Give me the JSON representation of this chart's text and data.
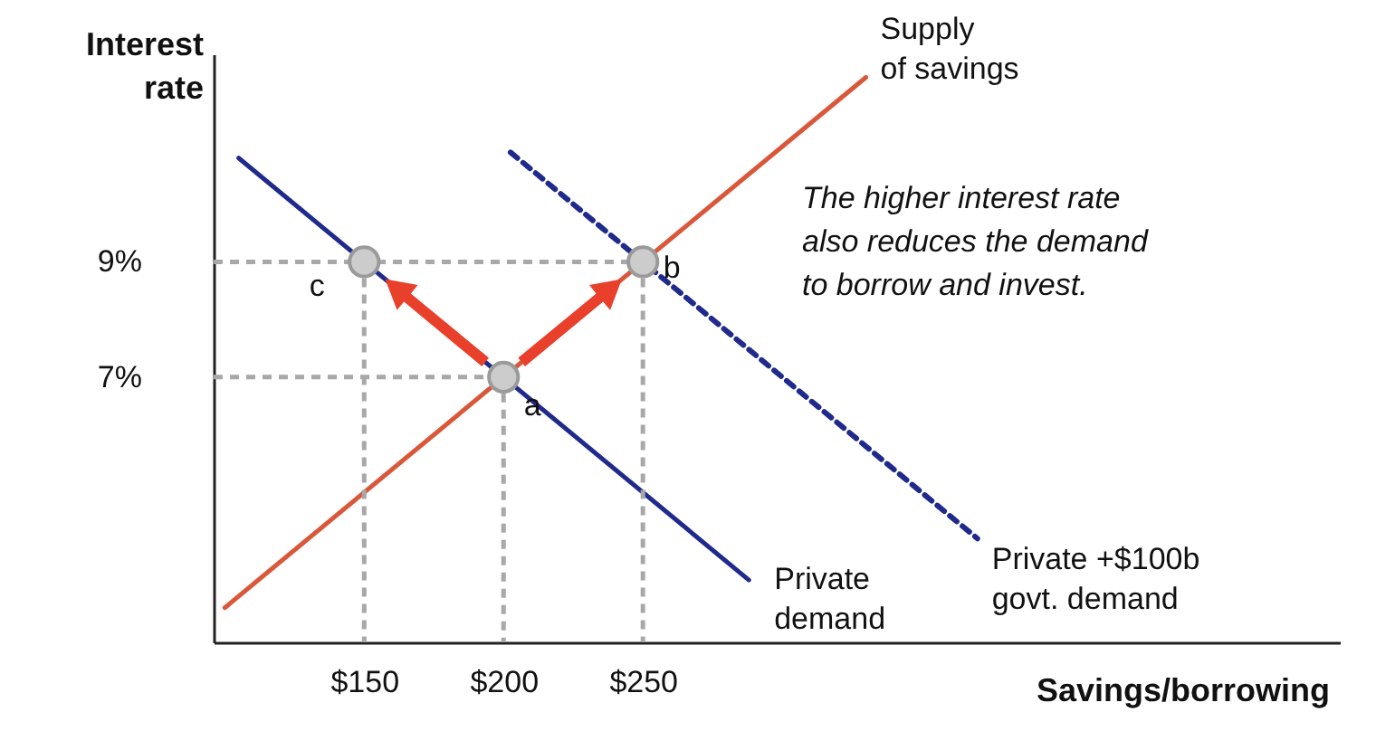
{
  "chart_data": {
    "type": "line",
    "xlabel": "Savings/borrowing",
    "ylabel": "Interest\nrate",
    "xlim": [
      96,
      500
    ],
    "ylim": [
      2.4,
      12.6
    ],
    "xticks": [
      {
        "value": 150,
        "label": "$150"
      },
      {
        "value": 200,
        "label": "$200"
      },
      {
        "value": 250,
        "label": "$250"
      }
    ],
    "yticks": [
      {
        "value": 7,
        "label": "7%"
      },
      {
        "value": 9,
        "label": "9%"
      }
    ],
    "series": [
      {
        "name": "Supply\nof savings",
        "color": "#d9583b",
        "x": [
          100,
          330
        ],
        "values": [
          3,
          12.2
        ]
      },
      {
        "name": "Private\ndemand",
        "color": "#1f2a8c",
        "x": [
          105,
          288
        ],
        "values": [
          10.8,
          3.48
        ]
      },
      {
        "name": "Private +$100b\ngovt. demand",
        "line_style": "dashed",
        "color": "#1f2a8c",
        "x": [
          202.5,
          370
        ],
        "values": [
          10.9,
          4.2
        ]
      },
      {
        "type": "line",
        "line_style": "dashed",
        "color": "#a8a8a8",
        "x": [
          96,
          250
        ],
        "values": [
          9,
          9
        ]
      },
      {
        "type": "line",
        "line_style": "dashed",
        "color": "#a8a8a8",
        "x": [
          96,
          200
        ],
        "values": [
          7,
          7
        ]
      },
      {
        "type": "line",
        "line_style": "dashed",
        "color": "#a8a8a8",
        "x": [
          150,
          150
        ],
        "values": [
          9,
          2.4
        ]
      },
      {
        "type": "line",
        "line_style": "dashed",
        "color": "#a8a8a8",
        "x": [
          200,
          200
        ],
        "values": [
          7,
          2.4
        ]
      },
      {
        "type": "line",
        "line_style": "dashed",
        "color": "#a8a8a8",
        "x": [
          250,
          250
        ],
        "values": [
          9,
          2.4
        ]
      },
      {
        "type": "scatter",
        "marker": "circle",
        "color": "#cccccc",
        "x": [
          150,
          200,
          250
        ],
        "values": [
          9,
          7,
          9
        ]
      }
    ],
    "annotations": [
      {
        "text": "c",
        "x": 150,
        "y": 9
      },
      {
        "text": "a",
        "x": 200,
        "y": 7
      },
      {
        "text": "b",
        "x": 250,
        "y": 9
      },
      "The higher interest rate\nalso reduces the demand\nto borrow and invest."
    ]
  }
}
